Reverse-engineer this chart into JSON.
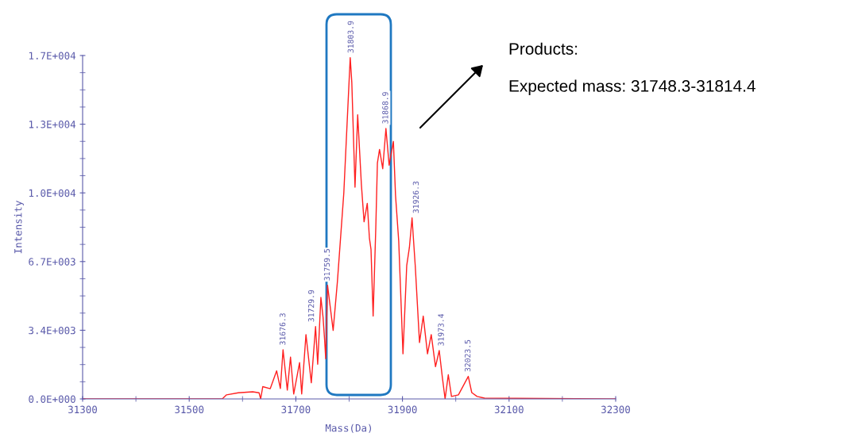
{
  "chart_data": {
    "type": "line",
    "xlabel": "Mass(Da)",
    "ylabel": "Intensity",
    "x": [
      31300,
      31562,
      31570,
      31592,
      31619,
      31631,
      31634,
      31638,
      31652,
      31664,
      31671,
      31676,
      31684,
      31690,
      31696,
      31707,
      31711,
      31719,
      31729,
      31737,
      31741,
      31747,
      31751,
      31754,
      31756,
      31759.5,
      31770,
      31778,
      31790,
      31802,
      31805,
      31811,
      31816,
      31823,
      31828,
      31834,
      31838,
      31841,
      31845,
      31850,
      31853,
      31857,
      31863,
      31869,
      31875,
      31883,
      31887,
      31893,
      31901,
      31908,
      31913,
      31918,
      31924,
      31932,
      31939,
      31947,
      31954,
      31962,
      31969,
      31975,
      31980,
      31986,
      31992,
      32005,
      32023.5,
      32030,
      32040,
      32054,
      32300
    ],
    "series": [
      {
        "color": "#ff2020",
        "values": [
          0,
          0,
          200,
          300,
          350,
          300,
          0,
          600,
          500,
          1370,
          510,
          2400,
          430,
          2040,
          240,
          1770,
          240,
          3140,
          790,
          3530,
          1690,
          4950,
          4000,
          2870,
          1960,
          5540,
          3340,
          5730,
          10050,
          16650,
          15430,
          10330,
          13860,
          10440,
          8640,
          9540,
          7850,
          7300,
          4040,
          8360,
          11500,
          12170,
          11230,
          13190,
          11400,
          12560,
          9930,
          7700,
          2200,
          6500,
          7380,
          8830,
          6500,
          2750,
          4040,
          2200,
          3140,
          1570,
          2360,
          1020,
          0,
          1180,
          120,
          200,
          1100,
          310,
          120,
          40,
          0
        ]
      }
    ],
    "xlim": [
      31300,
      32300
    ],
    "xticks": [
      31300,
      31500,
      31700,
      31900,
      32100,
      32300
    ],
    "ylim": [
      0,
      16750
    ],
    "yticks": [
      {
        "value": 0,
        "label": "0.0E+000"
      },
      {
        "value": 3350,
        "label": "3.4E+003"
      },
      {
        "value": 6700,
        "label": "6.7E+003"
      },
      {
        "value": 10050,
        "label": "1.0E+004"
      },
      {
        "value": 13400,
        "label": "1.3E+004"
      },
      {
        "value": 16750,
        "label": "1.7E+004"
      }
    ],
    "grid": false,
    "marker": "none",
    "line_style": "solid",
    "annotations": [
      {
        "text": "31676.3",
        "x": 31676.3,
        "y": 2400
      },
      {
        "text": "31729.9",
        "x": 31729.9,
        "y": 3530
      },
      {
        "text": "31759.5",
        "x": 31759.5,
        "y": 5540
      },
      {
        "text": "31803.9",
        "x": 31803.9,
        "y": 16650
      },
      {
        "text": "31868.9",
        "x": 31868.9,
        "y": 13190
      },
      {
        "text": "31926.3",
        "x": 31926.3,
        "y": 8830
      },
      {
        "text": "31973.4",
        "x": 31973.4,
        "y": 2360
      },
      {
        "text": "32023.5",
        "x": 32023.5,
        "y": 1100
      },
      "Products:",
      "Expected mass: 31748.3-31814.4"
    ]
  }
}
